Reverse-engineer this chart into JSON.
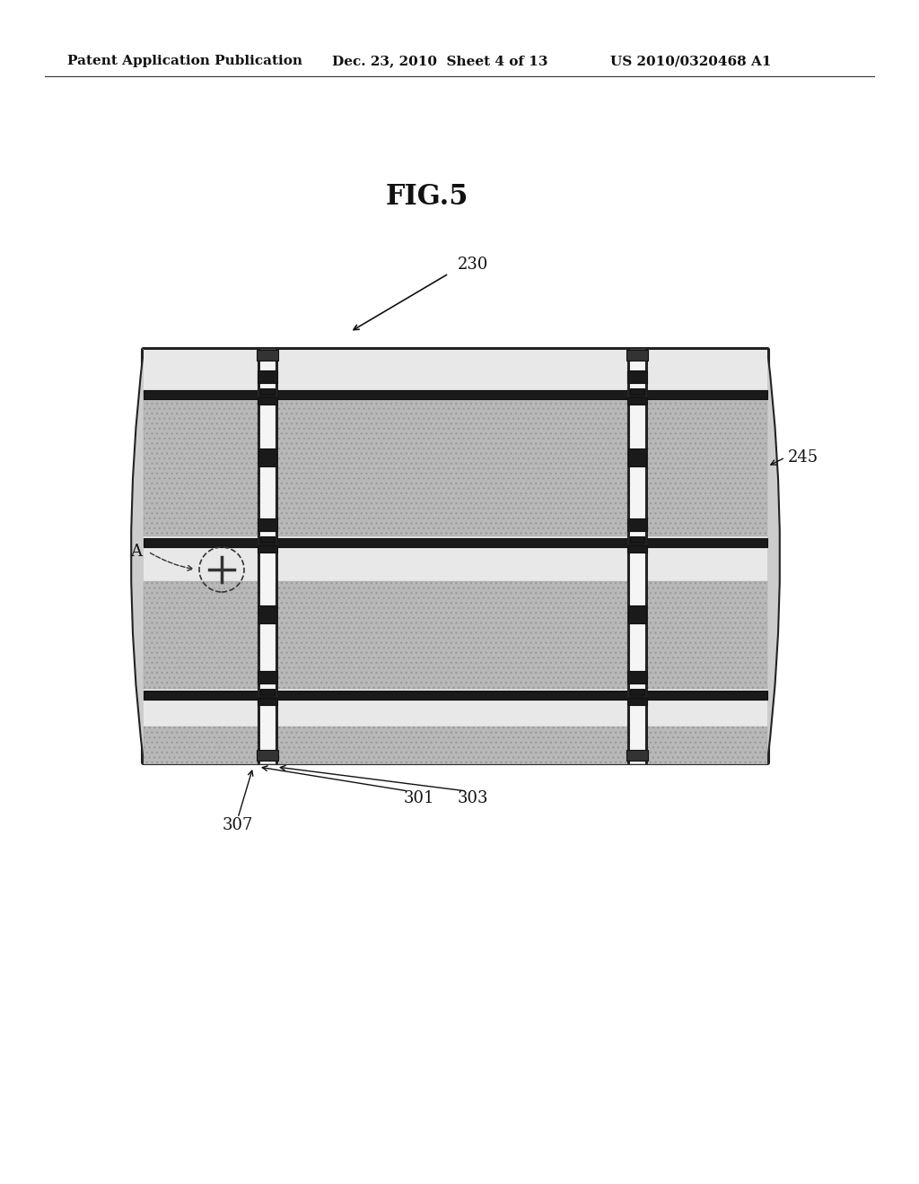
{
  "title": "FIG.5",
  "header_left": "Patent Application Publication",
  "header_mid": "Dec. 23, 2010  Sheet 4 of 13",
  "header_right": "US 2010/0320468 A1",
  "label_fig": "230",
  "label_245": "245",
  "label_301": "301",
  "label_303": "303",
  "label_307": "307",
  "label_A": "A",
  "bg_color": "#ffffff",
  "diagram_bg": "#d8d8d8",
  "cell_bg": "#c8c8c8",
  "dark_color": "#222222",
  "mid_color": "#555555",
  "light_gray": "#aaaaaa"
}
